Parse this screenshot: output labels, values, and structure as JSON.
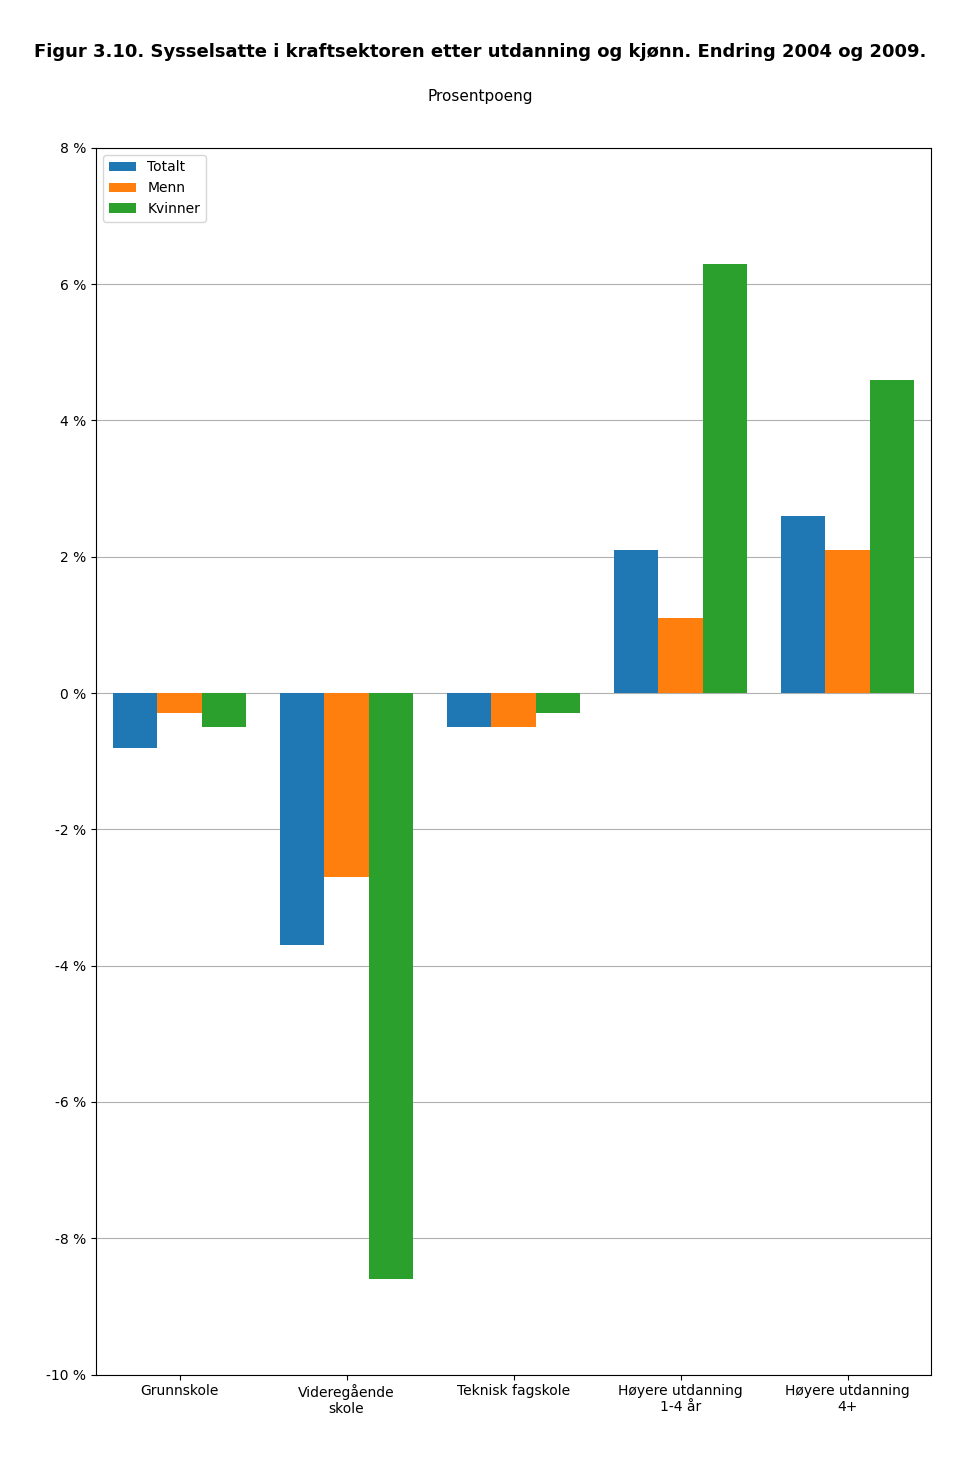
{
  "chart_data": {
    "type": "bar",
    "title": "Figur 3.10. Sysselsatte i kraftsektoren etter utdanning og kjønn. Endring 2004 og 2009.",
    "subtitle": "Prosentpoeng",
    "categories": [
      "Grunnskole",
      "Videregående\nskole",
      "Teknisk fagskole",
      "Høyere utdanning\n1-4 år",
      "Høyere utdanning\n4+"
    ],
    "series": [
      {
        "name": "Totalt",
        "values": [
          -0.8,
          -3.7,
          -0.5,
          2.1,
          2.6
        ]
      },
      {
        "name": "Menn",
        "values": [
          -0.3,
          -2.7,
          -0.5,
          1.1,
          2.1
        ]
      },
      {
        "name": "Kvinner",
        "values": [
          -0.5,
          -8.6,
          -0.3,
          6.3,
          4.6
        ]
      }
    ],
    "ylim": [
      -10,
      8
    ],
    "yticks": [
      {
        "value": -10,
        "label": "-10 %"
      },
      {
        "value": -8,
        "label": "-8 %"
      },
      {
        "value": -6,
        "label": "-6 %"
      },
      {
        "value": -4,
        "label": "-4 %"
      },
      {
        "value": -2,
        "label": "-2 %"
      },
      {
        "value": 0,
        "label": "0 %"
      },
      {
        "value": 2,
        "label": "2 %"
      },
      {
        "value": 4,
        "label": "4 %"
      },
      {
        "value": 6,
        "label": "6 %"
      },
      {
        "value": 8,
        "label": "8 %"
      }
    ],
    "grid": true,
    "legend": "upper left"
  }
}
